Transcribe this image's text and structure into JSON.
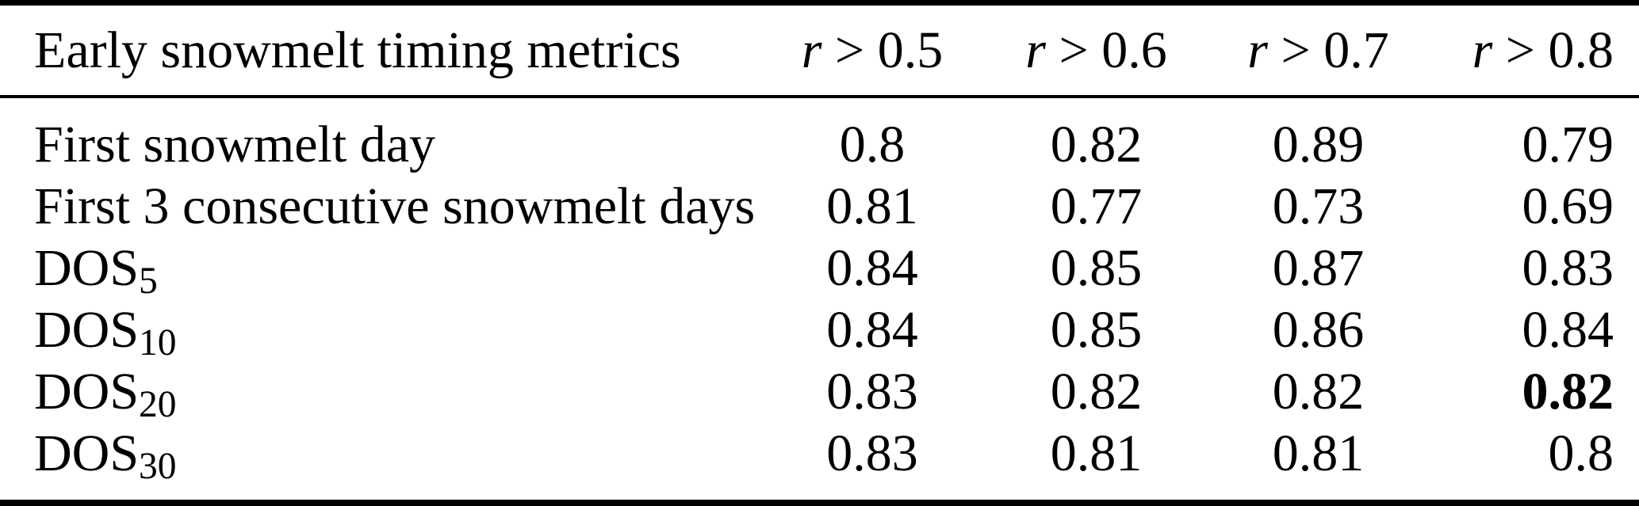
{
  "table": {
    "header": {
      "metric_column_label": "Early snowmelt timing metrics",
      "threshold_columns": [
        {
          "variable": "r",
          "condition": " > 0.5"
        },
        {
          "variable": "r",
          "condition": " > 0.6"
        },
        {
          "variable": "r",
          "condition": " > 0.7"
        },
        {
          "variable": "r",
          "condition": " > 0.8"
        }
      ]
    },
    "rows": [
      {
        "label": "First snowmelt day",
        "label_sub": "",
        "values": [
          "0.8",
          "0.82",
          "0.89",
          "0.79"
        ],
        "bold_value_index": null
      },
      {
        "label": "First 3 consecutive snowmelt days",
        "label_sub": "",
        "values": [
          "0.81",
          "0.77",
          "0.73",
          "0.69"
        ],
        "bold_value_index": null
      },
      {
        "label": "DOS",
        "label_sub": "5",
        "values": [
          "0.84",
          "0.85",
          "0.87",
          "0.83"
        ],
        "bold_value_index": null
      },
      {
        "label": "DOS",
        "label_sub": "10",
        "values": [
          "0.84",
          "0.85",
          "0.86",
          "0.84"
        ],
        "bold_value_index": null
      },
      {
        "label": "DOS",
        "label_sub": "20",
        "values": [
          "0.83",
          "0.82",
          "0.82",
          "0.82"
        ],
        "bold_value_index": 3
      },
      {
        "label": "DOS",
        "label_sub": "30",
        "values": [
          "0.83",
          "0.81",
          "0.81",
          "0.8"
        ],
        "bold_value_index": null
      }
    ],
    "colors": {
      "text": "#000000",
      "background": "#ffffff",
      "rule": "#000000"
    }
  }
}
